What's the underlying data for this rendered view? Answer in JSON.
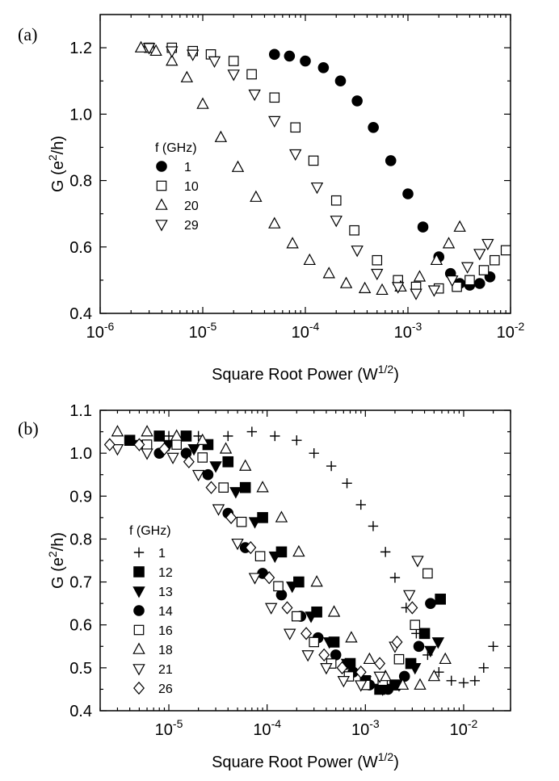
{
  "chart_data": [
    {
      "panel_label": "(a)",
      "type": "scatter",
      "xscale": "log",
      "xlim": [
        1e-06,
        0.01
      ],
      "ylim": [
        0.4,
        1.3
      ],
      "xlabel": "Square Root Power",
      "xunit": "W",
      "xunit_exp": "1/2",
      "ylabel": "G",
      "yunit_base": "e",
      "yunit_exp": "2",
      "yunit_rest": "/h",
      "xticks": [
        {
          "value": 1e-06,
          "base": "10",
          "exp": "-6"
        },
        {
          "value": 1e-05,
          "base": "10",
          "exp": "-5"
        },
        {
          "value": 0.0001,
          "base": "10",
          "exp": "-4"
        },
        {
          "value": 0.001,
          "base": "10",
          "exp": "-3"
        },
        {
          "value": 0.01,
          "base": "10",
          "exp": "-2"
        }
      ],
      "yticks": [
        {
          "value": 0.4,
          "label": "0.4"
        },
        {
          "value": 0.6,
          "label": "0.6"
        },
        {
          "value": 0.8,
          "label": "0.8"
        },
        {
          "value": 1.0,
          "label": "1.0"
        },
        {
          "value": 1.2,
          "label": "1.2"
        }
      ],
      "legend_title": "f (GHz)",
      "legend_position": "left",
      "series": [
        {
          "name": "1",
          "marker": "circle-filled",
          "x": [
            5e-05,
            7e-05,
            0.0001,
            0.00015,
            0.00022,
            0.00032,
            0.00046,
            0.00068,
            0.001,
            0.0014,
            0.002,
            0.0026,
            0.0032,
            0.004,
            0.005,
            0.0063
          ],
          "y": [
            1.18,
            1.175,
            1.16,
            1.14,
            1.1,
            1.04,
            0.96,
            0.86,
            0.76,
            0.66,
            0.57,
            0.52,
            0.49,
            0.485,
            0.49,
            0.51
          ]
        },
        {
          "name": "10",
          "marker": "square-open",
          "x": [
            3e-06,
            5e-06,
            8e-06,
            1.2e-05,
            2e-05,
            3e-05,
            5e-05,
            8e-05,
            0.00012,
            0.0002,
            0.0003,
            0.0005,
            0.0008,
            0.0012,
            0.002,
            0.003,
            0.004,
            0.0055,
            0.007,
            0.009
          ],
          "y": [
            1.2,
            1.2,
            1.19,
            1.18,
            1.16,
            1.12,
            1.05,
            0.96,
            0.86,
            0.74,
            0.65,
            0.56,
            0.5,
            0.48,
            0.475,
            0.48,
            0.5,
            0.53,
            0.56,
            0.59
          ]
        },
        {
          "name": "20",
          "marker": "triangle-up-open",
          "x": [
            2.5e-06,
            3.5e-06,
            5e-06,
            7e-06,
            1e-05,
            1.5e-05,
            2.2e-05,
            3.3e-05,
            5e-05,
            7.5e-05,
            0.00011,
            0.00017,
            0.00025,
            0.00038,
            0.00056,
            0.00085,
            0.0013,
            0.0019,
            0.0025,
            0.0032
          ],
          "y": [
            1.2,
            1.19,
            1.16,
            1.11,
            1.03,
            0.93,
            0.84,
            0.75,
            0.67,
            0.61,
            0.56,
            0.52,
            0.49,
            0.475,
            0.47,
            0.48,
            0.51,
            0.56,
            0.61,
            0.66
          ]
        },
        {
          "name": "29",
          "marker": "triangle-down-open",
          "x": [
            3e-06,
            5e-06,
            8e-06,
            1.3e-05,
            2e-05,
            3.2e-05,
            5e-05,
            8e-05,
            0.00013,
            0.0002,
            0.00032,
            0.0005,
            0.0008,
            0.0012,
            0.0018,
            0.0027,
            0.0038,
            0.005,
            0.006
          ],
          "y": [
            1.2,
            1.19,
            1.18,
            1.16,
            1.12,
            1.06,
            0.98,
            0.88,
            0.78,
            0.68,
            0.59,
            0.52,
            0.48,
            0.46,
            0.47,
            0.5,
            0.54,
            0.58,
            0.61
          ]
        }
      ]
    },
    {
      "panel_label": "(b)",
      "type": "scatter",
      "xscale": "log",
      "xlim": [
        2e-06,
        0.03
      ],
      "ylim": [
        0.4,
        1.1
      ],
      "xlabel": "Square Root Power",
      "xunit": "W",
      "xunit_exp": "1/2",
      "ylabel": "G",
      "yunit_base": "e",
      "yunit_exp": "2",
      "yunit_rest": "/h",
      "xticks": [
        {
          "value": 1e-05,
          "base": "10",
          "exp": "-5"
        },
        {
          "value": 0.0001,
          "base": "10",
          "exp": "-4"
        },
        {
          "value": 0.001,
          "base": "10",
          "exp": "-3"
        },
        {
          "value": 0.01,
          "base": "10",
          "exp": "-2"
        }
      ],
      "yticks": [
        {
          "value": 0.4,
          "label": "0.4"
        },
        {
          "value": 0.5,
          "label": "0.5"
        },
        {
          "value": 0.6,
          "label": "0.6"
        },
        {
          "value": 0.7,
          "label": "0.7"
        },
        {
          "value": 0.8,
          "label": "0.8"
        },
        {
          "value": 0.9,
          "label": "0.9"
        },
        {
          "value": 1.0,
          "label": "1.0"
        },
        {
          "value": 1.1,
          "label": "1.1"
        }
      ],
      "legend_title": "f (GHz)",
      "legend_position": "left",
      "series": [
        {
          "name": "1",
          "marker": "plus",
          "x": [
            1e-05,
            2e-05,
            4e-05,
            7e-05,
            0.00012,
            0.0002,
            0.0003,
            0.00045,
            0.00065,
            0.0009,
            0.0012,
            0.0016,
            0.002,
            0.0026,
            0.0033,
            0.0043,
            0.0056,
            0.0075,
            0.01,
            0.013,
            0.016,
            0.02
          ],
          "y": [
            1.04,
            1.04,
            1.04,
            1.05,
            1.04,
            1.03,
            1.0,
            0.97,
            0.93,
            0.88,
            0.83,
            0.77,
            0.71,
            0.64,
            0.58,
            0.53,
            0.49,
            0.47,
            0.465,
            0.47,
            0.5,
            0.55
          ]
        },
        {
          "name": "12",
          "marker": "square-filled",
          "x": [
            4e-06,
            8e-06,
            1.5e-05,
            2.5e-05,
            4e-05,
            6e-05,
            9e-05,
            0.00014,
            0.00021,
            0.00032,
            0.00048,
            0.0007,
            0.001,
            0.0014,
            0.002,
            0.0029,
            0.004,
            0.0058
          ],
          "y": [
            1.03,
            1.04,
            1.04,
            1.02,
            0.98,
            0.92,
            0.85,
            0.77,
            0.7,
            0.63,
            0.56,
            0.51,
            0.47,
            0.45,
            0.46,
            0.51,
            0.58,
            0.66
          ]
        },
        {
          "name": "13",
          "marker": "triangle-down-filled",
          "x": [
            5e-06,
            1e-05,
            1.8e-05,
            3e-05,
            4.8e-05,
            7.5e-05,
            0.00012,
            0.00018,
            0.00028,
            0.00043,
            0.00065,
            0.001,
            0.0015,
            0.0022,
            0.0032,
            0.0046,
            0.0055
          ],
          "y": [
            1.02,
            1.02,
            1.01,
            0.97,
            0.91,
            0.84,
            0.76,
            0.69,
            0.62,
            0.56,
            0.51,
            0.47,
            0.45,
            0.46,
            0.5,
            0.54,
            0.56
          ]
        },
        {
          "name": "14",
          "marker": "circle-filled",
          "x": [
            8e-06,
            1.5e-05,
            2.5e-05,
            4e-05,
            6e-05,
            9e-05,
            0.00014,
            0.00022,
            0.00033,
            0.0005,
            0.00075,
            0.0011,
            0.0017,
            0.0025,
            0.0035,
            0.0046
          ],
          "y": [
            1.0,
            1.0,
            0.95,
            0.86,
            0.78,
            0.72,
            0.67,
            0.62,
            0.57,
            0.53,
            0.49,
            0.46,
            0.45,
            0.48,
            0.55,
            0.65
          ]
        },
        {
          "name": "16",
          "marker": "square-open",
          "x": [
            6e-06,
            1.2e-05,
            2.2e-05,
            3.6e-05,
            5.5e-05,
            8.5e-05,
            0.00013,
            0.0002,
            0.0003,
            0.00045,
            0.00068,
            0.001,
            0.0015,
            0.0022,
            0.0032,
            0.0043
          ],
          "y": [
            1.02,
            1.02,
            0.99,
            0.92,
            0.84,
            0.76,
            0.69,
            0.62,
            0.56,
            0.51,
            0.48,
            0.46,
            0.47,
            0.52,
            0.6,
            0.72
          ]
        },
        {
          "name": "18",
          "marker": "triangle-up-open",
          "x": [
            3e-06,
            6e-06,
            1.2e-05,
            2.2e-05,
            3.8e-05,
            6e-05,
            9e-05,
            0.00014,
            0.00021,
            0.00032,
            0.00048,
            0.00072,
            0.0011,
            0.0016,
            0.0024,
            0.0036,
            0.005,
            0.0065
          ],
          "y": [
            1.05,
            1.05,
            1.04,
            1.03,
            1.01,
            0.97,
            0.92,
            0.85,
            0.77,
            0.7,
            0.63,
            0.57,
            0.52,
            0.48,
            0.46,
            0.46,
            0.48,
            0.52
          ]
        },
        {
          "name": "21",
          "marker": "triangle-down-open",
          "x": [
            3e-06,
            6e-06,
            1.1e-05,
            2e-05,
            3.2e-05,
            5e-05,
            7.5e-05,
            0.00011,
            0.00017,
            0.00026,
            0.0004,
            0.0006,
            0.0009,
            0.0014,
            0.002,
            0.0028,
            0.0034
          ],
          "y": [
            1.01,
            1.0,
            0.99,
            0.95,
            0.87,
            0.79,
            0.71,
            0.64,
            0.58,
            0.53,
            0.5,
            0.47,
            0.46,
            0.48,
            0.55,
            0.67,
            0.75
          ]
        },
        {
          "name": "26",
          "marker": "diamond-open",
          "x": [
            2.5e-06,
            5e-06,
            9e-06,
            1.6e-05,
            2.7e-05,
            4.3e-05,
            6.8e-05,
            0.000105,
            0.00016,
            0.00025,
            0.00038,
            0.00058,
            0.0009,
            0.0014,
            0.0021,
            0.003
          ],
          "y": [
            1.02,
            1.02,
            1.01,
            0.98,
            0.92,
            0.85,
            0.78,
            0.71,
            0.64,
            0.58,
            0.53,
            0.5,
            0.49,
            0.51,
            0.56,
            0.64
          ]
        }
      ]
    }
  ]
}
